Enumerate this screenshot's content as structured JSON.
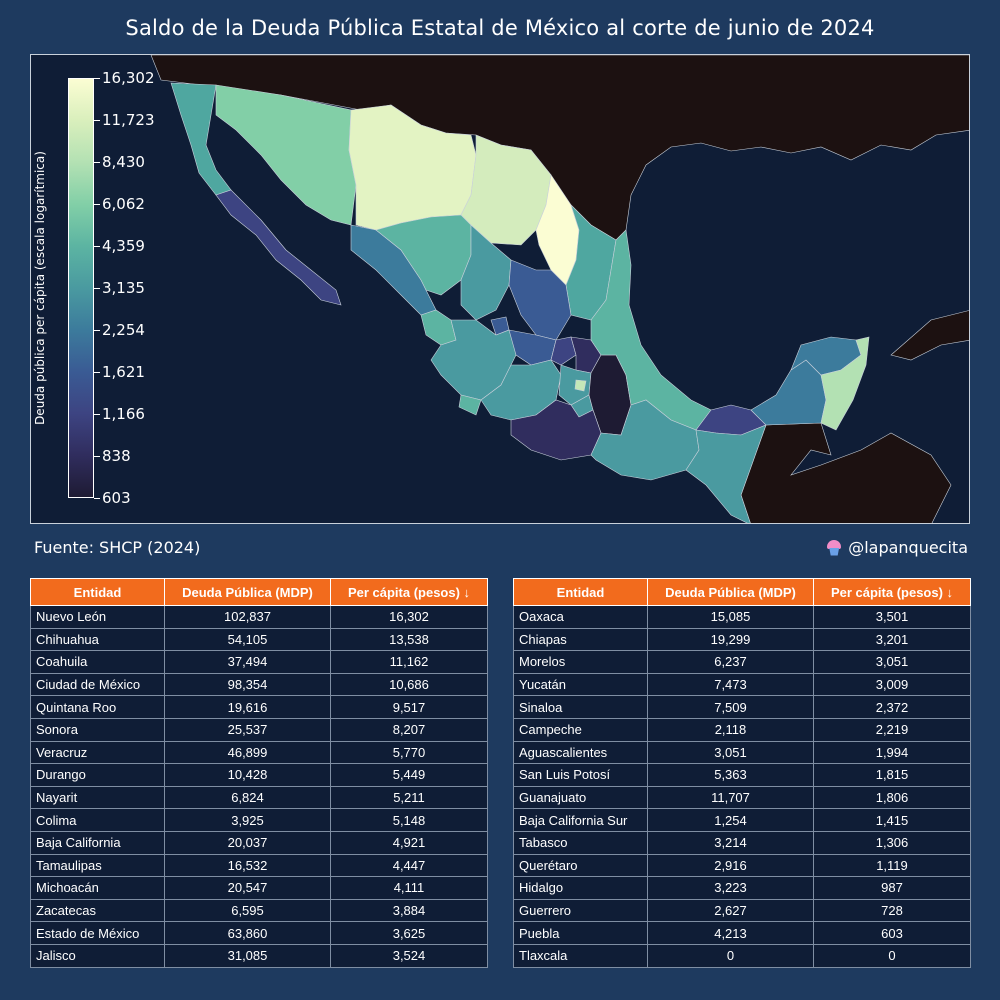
{
  "title": "Saldo de la Deuda Pública Estatal de México al corte de junio de 2024",
  "legend": {
    "label": "Deuda pública per cápita (escala logarítmica)",
    "ticks": [
      "16,302",
      "11,723",
      "8,430",
      "6,062",
      "4,359",
      "3,135",
      "2,254",
      "1,621",
      "1,166",
      "838",
      "603"
    ],
    "scale": "log",
    "colors": [
      "#fbfdd3",
      "#b3e1b3",
      "#5cb4a2",
      "#3c7b9c",
      "#3d4482",
      "#1e1b33"
    ]
  },
  "footer": {
    "source": "Fuente: SHCP (2024)",
    "handle": "@lapanquecita"
  },
  "table": {
    "headers": [
      "Entidad",
      "Deuda Pública (MDP)",
      "Per cápita (pesos) ↓"
    ],
    "left_rows": [
      [
        "Nuevo León",
        "102,837",
        "16,302"
      ],
      [
        "Chihuahua",
        "54,105",
        "13,538"
      ],
      [
        "Coahuila",
        "37,494",
        "11,162"
      ],
      [
        "Ciudad de México",
        "98,354",
        "10,686"
      ],
      [
        "Quintana Roo",
        "19,616",
        "9,517"
      ],
      [
        "Sonora",
        "25,537",
        "8,207"
      ],
      [
        "Veracruz",
        "46,899",
        "5,770"
      ],
      [
        "Durango",
        "10,428",
        "5,449"
      ],
      [
        "Nayarit",
        "6,824",
        "5,211"
      ],
      [
        "Colima",
        "3,925",
        "5,148"
      ],
      [
        "Baja California",
        "20,037",
        "4,921"
      ],
      [
        "Tamaulipas",
        "16,532",
        "4,447"
      ],
      [
        "Michoacán",
        "20,547",
        "4,111"
      ],
      [
        "Zacatecas",
        "6,595",
        "3,884"
      ],
      [
        "Estado de México",
        "63,860",
        "3,625"
      ],
      [
        "Jalisco",
        "31,085",
        "3,524"
      ]
    ],
    "right_rows": [
      [
        "Oaxaca",
        "15,085",
        "3,501"
      ],
      [
        "Chiapas",
        "19,299",
        "3,201"
      ],
      [
        "Morelos",
        "6,237",
        "3,051"
      ],
      [
        "Yucatán",
        "7,473",
        "3,009"
      ],
      [
        "Sinaloa",
        "7,509",
        "2,372"
      ],
      [
        "Campeche",
        "2,118",
        "2,219"
      ],
      [
        "Aguascalientes",
        "3,051",
        "1,994"
      ],
      [
        "San Luis Potosí",
        "5,363",
        "1,815"
      ],
      [
        "Guanajuato",
        "11,707",
        "1,806"
      ],
      [
        "Baja California Sur",
        "1,254",
        "1,415"
      ],
      [
        "Tabasco",
        "3,214",
        "1,306"
      ],
      [
        "Querétaro",
        "2,916",
        "1,119"
      ],
      [
        "Hidalgo",
        "3,223",
        "987"
      ],
      [
        "Guerrero",
        "2,627",
        "728"
      ],
      [
        "Puebla",
        "4,213",
        "603"
      ],
      [
        "Tlaxcala",
        "0",
        "0"
      ]
    ]
  }
}
